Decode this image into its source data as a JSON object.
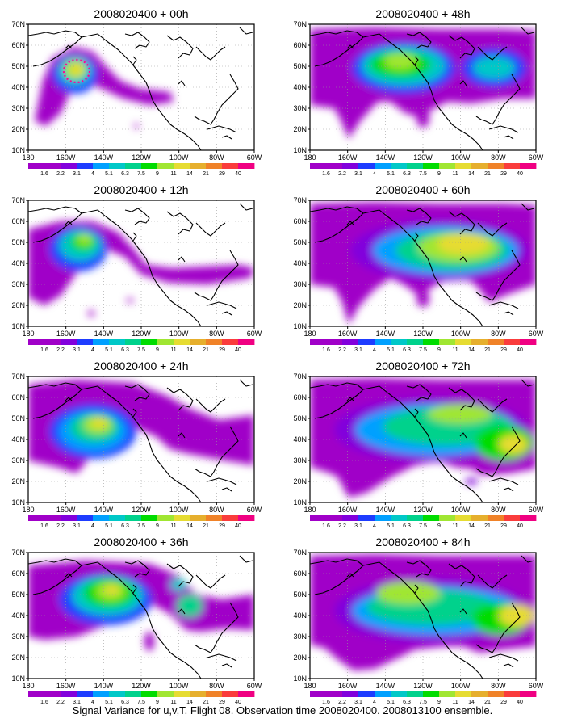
{
  "caption": "Signal Variance for u,v,T. Flight 08. Observation time 2008020400. 2008013100 ensemble.",
  "lat_labels": [
    "70N",
    "60N",
    "50N",
    "40N",
    "30N",
    "20N",
    "10N"
  ],
  "lon_labels": [
    "180",
    "160W",
    "140W",
    "120W",
    "100W",
    "80W",
    "60W"
  ],
  "colorbar": {
    "levels": [
      "1.6",
      "2.2",
      "3.1",
      "4",
      "5.1",
      "6.3",
      "7.5",
      "9",
      "11",
      "14",
      "21",
      "29",
      "40"
    ],
    "colors": [
      "#a000c8",
      "#8200dc",
      "#1e3cff",
      "#00a0ff",
      "#00c8c8",
      "#00d28c",
      "#00dc00",
      "#a0e632",
      "#e6dc32",
      "#e6af2d",
      "#f08228",
      "#fa3c3c",
      "#f00082"
    ]
  },
  "panels": [
    {
      "title": "2008020400 + 00h"
    },
    {
      "title": "2008020400 + 48h"
    },
    {
      "title": "2008020400 + 12h"
    },
    {
      "title": "2008020400 + 60h"
    },
    {
      "title": "2008020400 + 24h"
    },
    {
      "title": "2008020400 + 72h"
    },
    {
      "title": "2008020400 + 36h"
    },
    {
      "title": "2008020400 + 84h"
    }
  ]
}
